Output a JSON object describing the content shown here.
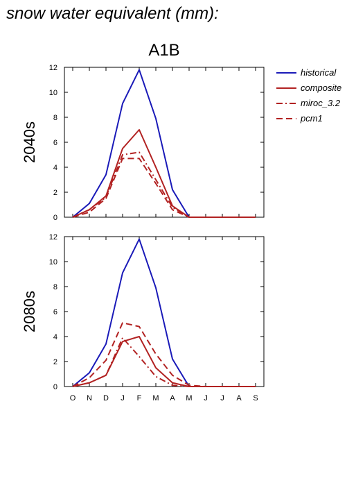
{
  "header": {
    "title": "snow water equivalent (mm):",
    "scenario": "A1B"
  },
  "chart_data": {
    "type": "line",
    "categories": [
      "O",
      "N",
      "D",
      "J",
      "F",
      "M",
      "A",
      "M",
      "J",
      "J",
      "A",
      "S"
    ],
    "ylim": [
      0,
      12
    ],
    "yticks": [
      0,
      2,
      4,
      6,
      8,
      10,
      12
    ],
    "grid": false,
    "legend_placement": "right",
    "series_styles": {
      "historical": {
        "color": "#1a1ab8",
        "dash": ""
      },
      "composite": {
        "color": "#b22222",
        "dash": ""
      },
      "miroc_3.2": {
        "color": "#b22222",
        "dash": "9,4,2,4"
      },
      "pcm1": {
        "color": "#b22222",
        "dash": "9,5"
      }
    },
    "legend": [
      "historical",
      "composite",
      "miroc_3.2",
      "pcm1"
    ],
    "panels": [
      {
        "label": "2040s",
        "series": [
          {
            "name": "historical",
            "values": [
              0,
              1.1,
              3.4,
              9.1,
              11.8,
              7.9,
              2.2,
              0,
              0,
              0,
              0,
              0
            ]
          },
          {
            "name": "composite",
            "values": [
              0,
              0.6,
              1.7,
              5.5,
              7.0,
              4.0,
              0.9,
              0,
              0,
              0,
              0,
              0
            ]
          },
          {
            "name": "miroc_3.2",
            "values": [
              0,
              0.6,
              1.6,
              5.0,
              5.2,
              3.0,
              0.8,
              0,
              0,
              0,
              0,
              0
            ]
          },
          {
            "name": "pcm1",
            "values": [
              0,
              0.4,
              1.5,
              4.7,
              4.7,
              2.7,
              0.6,
              0,
              0,
              0,
              0,
              0
            ]
          }
        ]
      },
      {
        "label": "2080s",
        "series": [
          {
            "name": "historical",
            "values": [
              0,
              1.1,
              3.4,
              9.1,
              11.8,
              7.9,
              2.2,
              0,
              0,
              0,
              0,
              0
            ]
          },
          {
            "name": "composite",
            "values": [
              0,
              0.3,
              0.9,
              3.6,
              4.0,
              1.5,
              0.3,
              0,
              0,
              0,
              0,
              0
            ]
          },
          {
            "name": "miroc_3.2",
            "values": [
              0,
              0.3,
              0.9,
              3.9,
              2.4,
              0.8,
              0.1,
              0,
              0,
              0,
              0,
              0
            ]
          },
          {
            "name": "pcm1",
            "values": [
              0,
              0.7,
              2.1,
              5.1,
              4.8,
              2.6,
              0.9,
              0.1,
              0,
              0,
              0,
              0
            ]
          }
        ]
      }
    ]
  }
}
